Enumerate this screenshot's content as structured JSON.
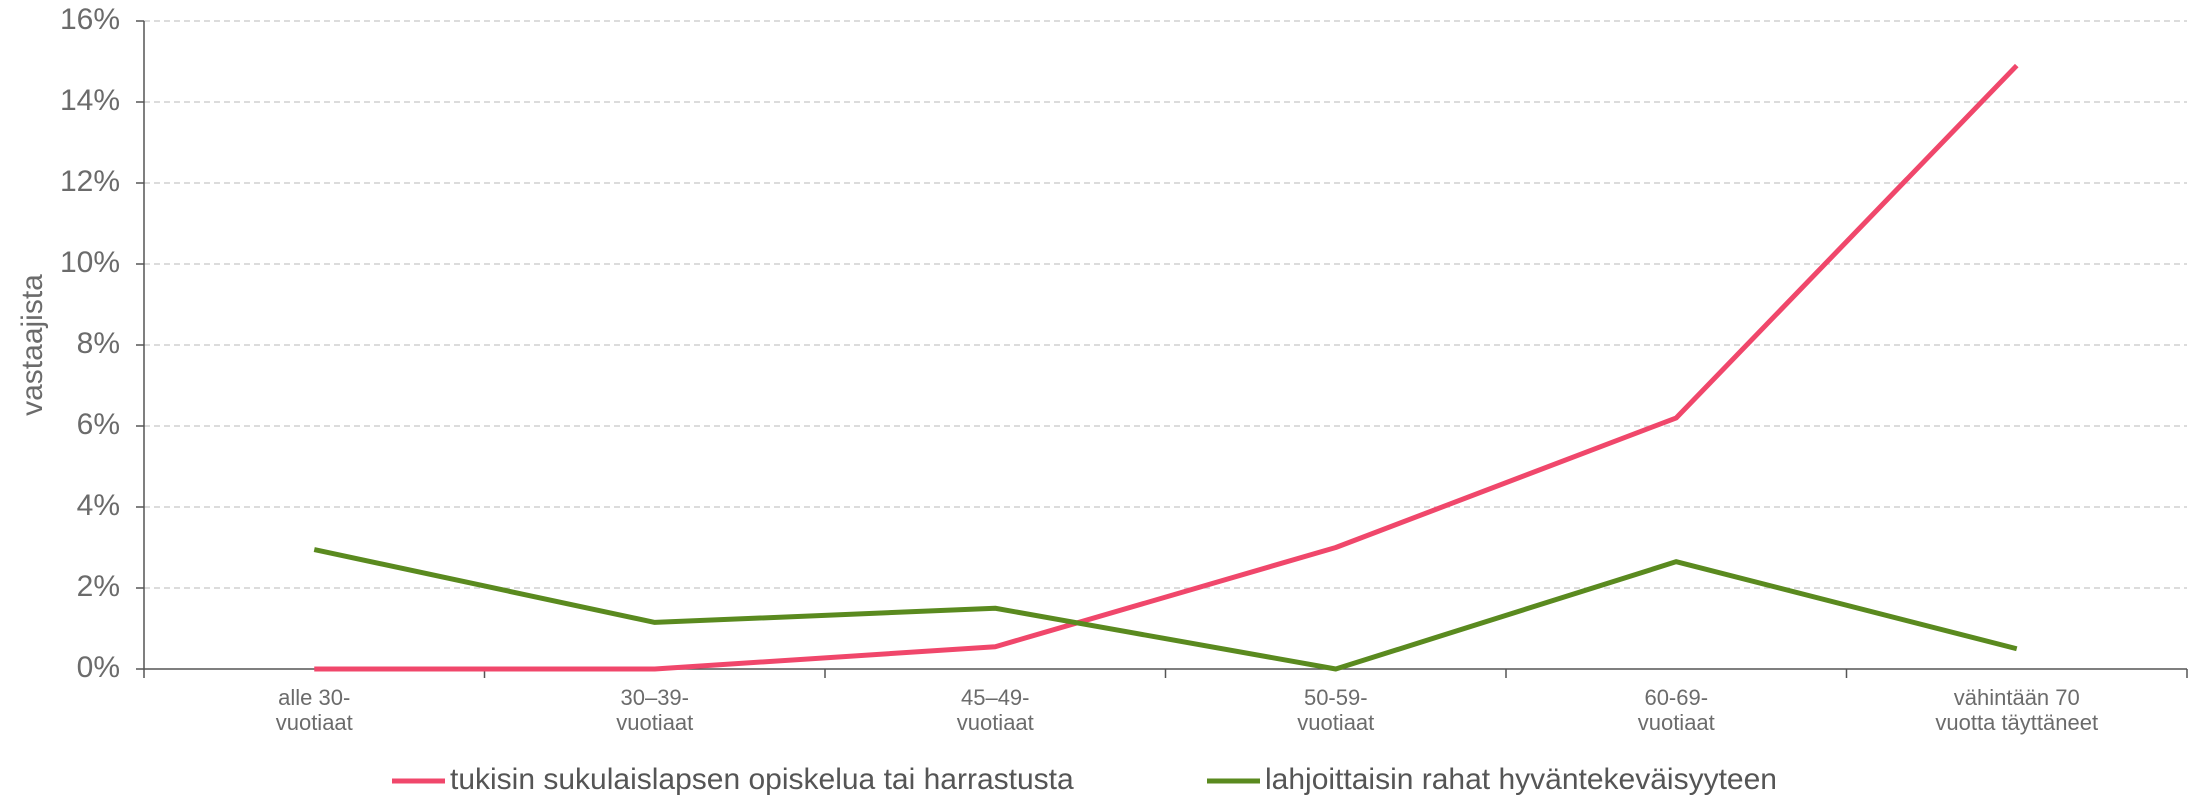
{
  "chart_data": {
    "type": "line",
    "y_label": "vastaajista",
    "categories": [
      [
        "alle 30-",
        "vuotiaat"
      ],
      [
        "30–39-",
        "vuotiaat"
      ],
      [
        "45–49-",
        "vuotiaat"
      ],
      [
        "50-59-",
        "vuotiaat"
      ],
      [
        "60-69-",
        "vuotiaat"
      ],
      [
        "vähintään 70",
        "vuotta täyttäneet"
      ]
    ],
    "series": [
      {
        "name": "tukisin sukulaislapsen opiskelua tai harrastusta",
        "color": "#f0476b",
        "values": [
          0,
          0,
          0.55,
          3.0,
          6.2,
          14.9
        ]
      },
      {
        "name": "lahjoittaisin rahat hyväntekeväisyyteen",
        "color": "#5a8a1f",
        "values": [
          2.95,
          1.15,
          1.5,
          0,
          2.65,
          0.5
        ]
      }
    ],
    "ylim": [
      0,
      16
    ],
    "yticks": [
      {
        "value": 0,
        "label": "0%"
      },
      {
        "value": 2,
        "label": "2%"
      },
      {
        "value": 4,
        "label": "4%"
      },
      {
        "value": 6,
        "label": "6%"
      },
      {
        "value": 8,
        "label": "8%"
      },
      {
        "value": 10,
        "label": "10%"
      },
      {
        "value": 12,
        "label": "12%"
      },
      {
        "value": 14,
        "label": "14%"
      },
      {
        "value": 16,
        "label": "16%"
      }
    ],
    "grid": true,
    "legend": "bottom"
  }
}
